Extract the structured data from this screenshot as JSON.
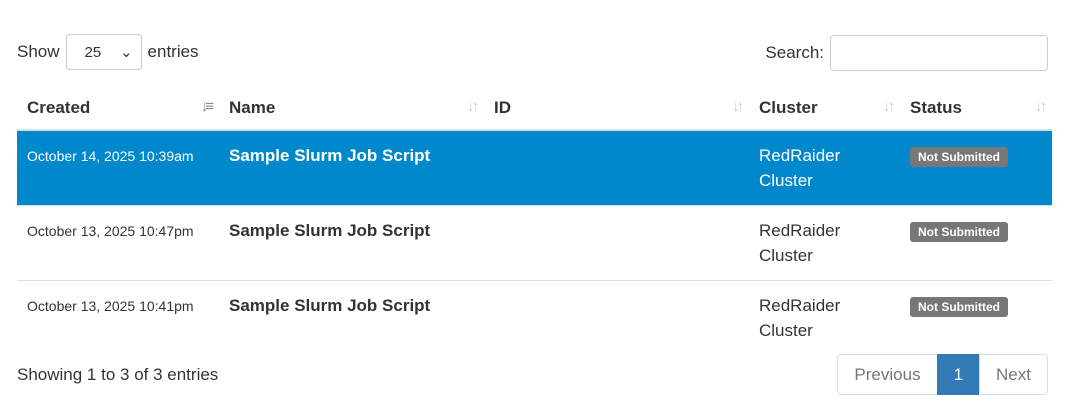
{
  "length": {
    "show": "Show",
    "value": "25",
    "entries": "entries"
  },
  "search": {
    "label": "Search:",
    "value": ""
  },
  "columns": [
    "Created",
    "Name",
    "ID",
    "Cluster",
    "Status"
  ],
  "rows": [
    {
      "created": "October 14, 2025 10:39am",
      "name": "Sample Slurm Job Script",
      "id": "",
      "cluster": "RedRaider Cluster",
      "status": "Not Submitted",
      "selected": true
    },
    {
      "created": "October 13, 2025 10:47pm",
      "name": "Sample Slurm Job Script",
      "id": "",
      "cluster": "RedRaider Cluster",
      "status": "Not Submitted"
    },
    {
      "created": "October 13, 2025 10:41pm",
      "name": "Sample Slurm Job Script",
      "id": "",
      "cluster": "RedRaider Cluster",
      "status": "Not Submitted"
    }
  ],
  "info": "Showing 1 to 3 of 3 entries",
  "pagination": {
    "previous": "Previous",
    "current": "1",
    "next": "Next"
  },
  "colors": {
    "selected_row": "#0088cc",
    "badge": "#777777",
    "active_page": "#337ab7"
  }
}
